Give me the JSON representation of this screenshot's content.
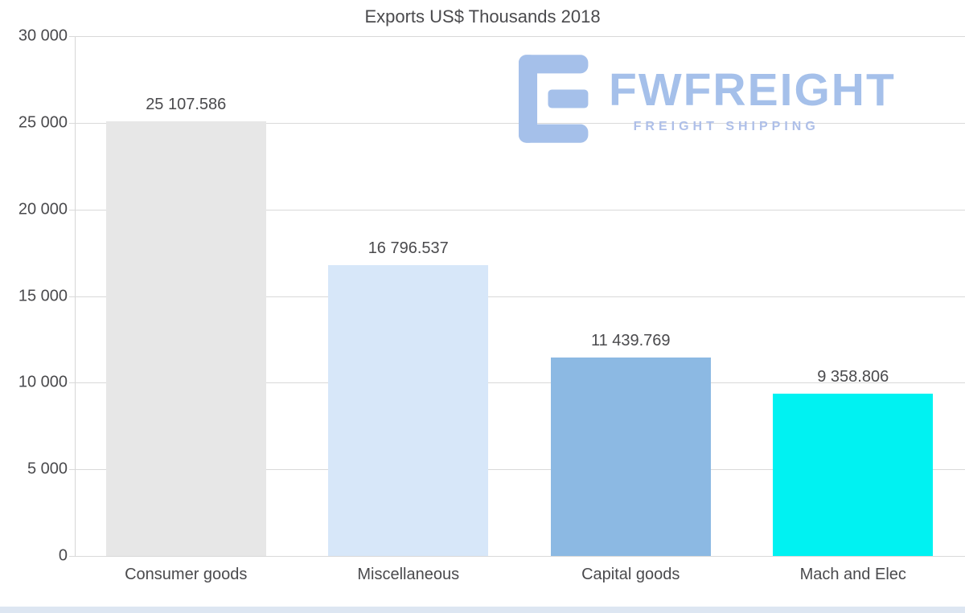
{
  "title": "Exports US$ Thousands 2018",
  "watermark": {
    "brand": "FWFREIGHT",
    "tagline": "FREIGHT SHIPPING",
    "color": "#a5c0ea"
  },
  "colors": {
    "gridline": "#d9d9d9",
    "text": "#4a4a4d",
    "bottom_strip": "#dde6f2"
  },
  "chart_data": {
    "type": "bar",
    "title": "Exports US$ Thousands 2018",
    "categories": [
      "Consumer goods",
      "Miscellaneous",
      "Capital goods",
      "Mach and Elec"
    ],
    "values": [
      25107.586,
      16796.537,
      11439.769,
      9358.806
    ],
    "value_labels": [
      "25 107.586",
      "16 796.537",
      "11 439.769",
      "9 358.806"
    ],
    "bar_colors": [
      "#e7e7e7",
      "#d7e7f9",
      "#8cb9e3",
      "#00f2f2"
    ],
    "xlabel": "",
    "ylabel": "",
    "ylim": [
      0,
      30000
    ],
    "grid": true,
    "legend": "none",
    "yticks": [
      {
        "value": 30000,
        "label": "30 000"
      },
      {
        "value": 25000,
        "label": "25 000"
      },
      {
        "value": 20000,
        "label": "20 000"
      },
      {
        "value": 15000,
        "label": "15 000"
      },
      {
        "value": 10000,
        "label": "10 000"
      },
      {
        "value": 5000,
        "label": "5 000"
      },
      {
        "value": 0,
        "label": "0"
      }
    ]
  }
}
